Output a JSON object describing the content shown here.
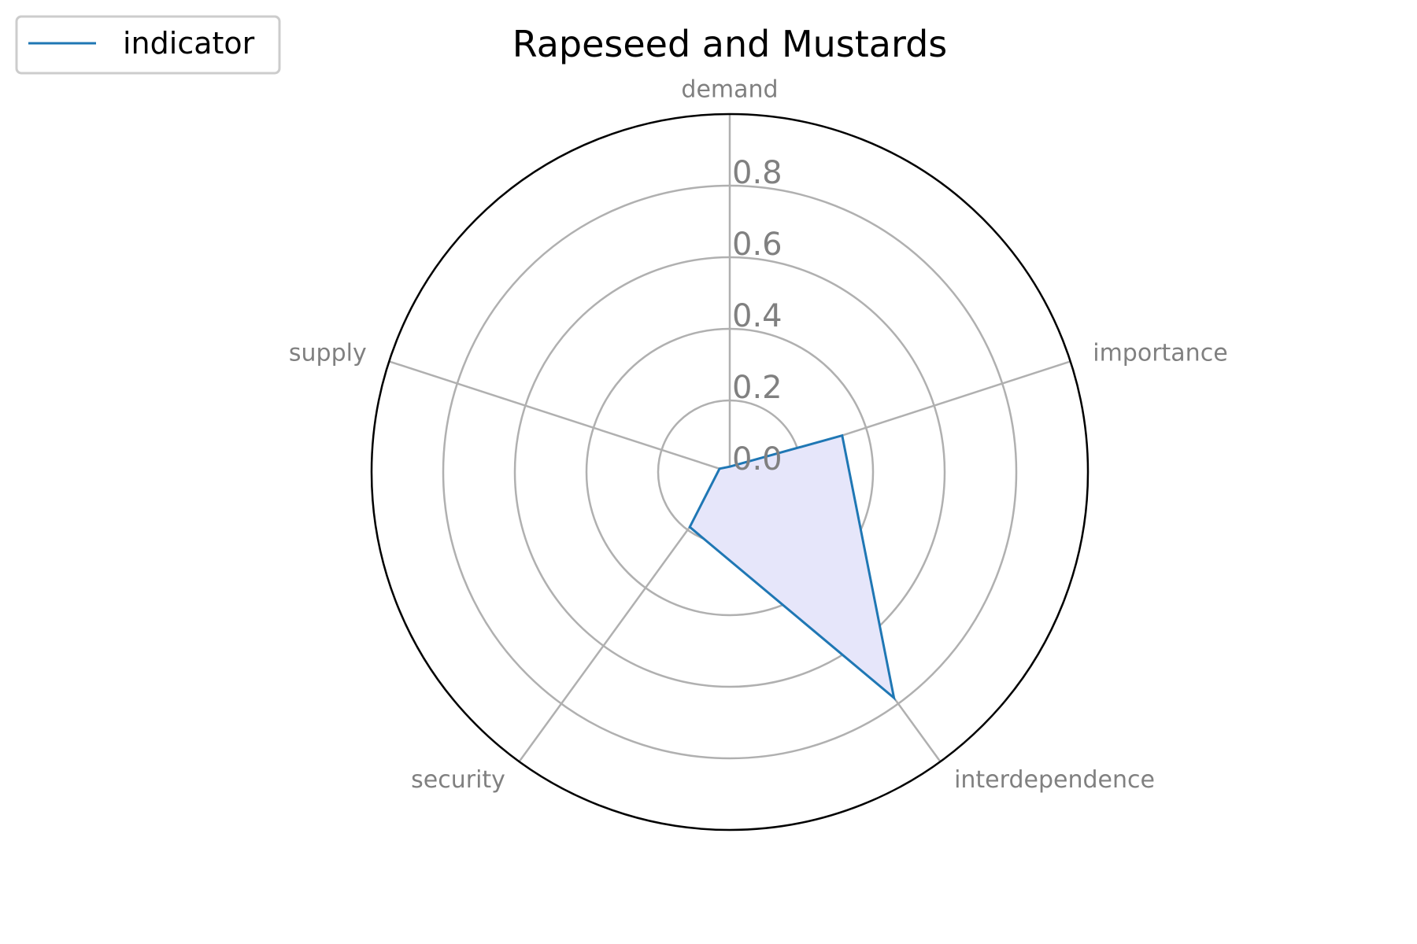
{
  "chart_data": {
    "type": "radar",
    "title": "Rapeseed and Mustards",
    "categories": [
      "demand",
      "importance",
      "interdependence",
      "security",
      "supply"
    ],
    "series": [
      {
        "name": "indicator",
        "values": [
          0.015,
          0.33,
          0.78,
          0.19,
          0.03
        ]
      }
    ],
    "rticks": [
      0.0,
      0.2,
      0.4,
      0.6,
      0.8
    ],
    "rtick_labels": [
      "0.0",
      "0.2",
      "0.4",
      "0.6",
      "0.8"
    ],
    "rlim": [
      0,
      1.0
    ],
    "grid": true,
    "legend_position": "top-left",
    "colors": {
      "line": "#1f77b4",
      "fill": "#e6e6fa",
      "grid": "#b0b0b0",
      "frame": "#000000",
      "label": "#808080"
    }
  }
}
